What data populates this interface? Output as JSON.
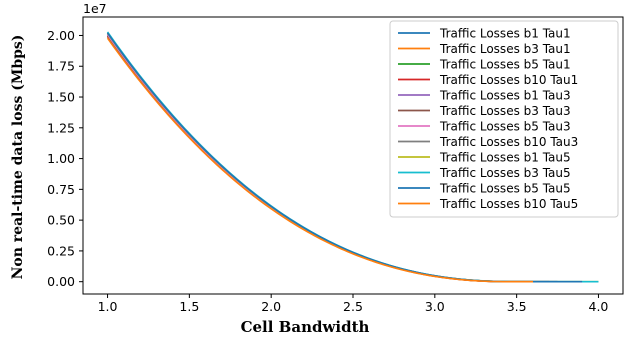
{
  "chart_data": {
    "type": "line",
    "xlabel": "Cell Bandwidth",
    "ylabel": "Non real-time data loss (Mbps)",
    "y_offset_label": "1e7",
    "xlim": [
      0.85,
      4.15
    ],
    "ylim": [
      -1000000,
      21500000
    ],
    "x_ticks": [
      1.0,
      1.5,
      2.0,
      2.5,
      3.0,
      3.5,
      4.0
    ],
    "x_tick_labels": [
      "1.0",
      "1.5",
      "2.0",
      "2.5",
      "3.0",
      "3.5",
      "4.0"
    ],
    "y_ticks": [
      0,
      2500000,
      5000000,
      7500000,
      10000000,
      12500000,
      15000000,
      17500000,
      20000000
    ],
    "y_tick_labels": [
      "0.00",
      "0.25",
      "0.50",
      "0.75",
      "1.00",
      "1.25",
      "1.50",
      "1.75",
      "2.00"
    ],
    "grid": false,
    "legend_position": "top-right",
    "series": [
      {
        "name": "Traffic Losses b1 Tau1",
        "color": "#1f77b4",
        "x_end": 3.55,
        "y_start": 20000000,
        "offset": 0
      },
      {
        "name": "Traffic Losses b3 Tau1",
        "color": "#ff7f0e",
        "x_end": 3.55,
        "y_start": 19950000,
        "offset": -80000
      },
      {
        "name": "Traffic Losses b5 Tau1",
        "color": "#2ca02c",
        "x_end": 3.6,
        "y_start": 20050000,
        "offset": 40000
      },
      {
        "name": "Traffic Losses b10 Tau1",
        "color": "#d62728",
        "x_end": 3.6,
        "y_start": 20000000,
        "offset": -30000
      },
      {
        "name": "Traffic Losses b1 Tau3",
        "color": "#9467bd",
        "x_end": 3.7,
        "y_start": 20050000,
        "offset": 60000
      },
      {
        "name": "Traffic Losses b3 Tau3",
        "color": "#8c564b",
        "x_end": 3.7,
        "y_start": 20000000,
        "offset": -50000
      },
      {
        "name": "Traffic Losses b5 Tau3",
        "color": "#e377c2",
        "x_end": 3.75,
        "y_start": 20050000,
        "offset": 20000
      },
      {
        "name": "Traffic Losses b10 Tau3",
        "color": "#7f7f7f",
        "x_end": 3.75,
        "y_start": 20100000,
        "offset": 90000
      },
      {
        "name": "Traffic Losses b1 Tau5",
        "color": "#bcbd22",
        "x_end": 4.0,
        "y_start": 20100000,
        "offset": 100000
      },
      {
        "name": "Traffic Losses b3 Tau5",
        "color": "#17becf",
        "x_end": 4.0,
        "y_start": 20150000,
        "offset": 140000
      },
      {
        "name": "Traffic Losses b5 Tau5",
        "color": "#1f77b4",
        "x_end": 3.9,
        "y_start": 20100000,
        "offset": 110000
      },
      {
        "name": "Traffic Losses b10 Tau5",
        "color": "#ff7f0e",
        "x_end": 3.6,
        "y_start": 19900000,
        "offset": -120000
      }
    ]
  }
}
